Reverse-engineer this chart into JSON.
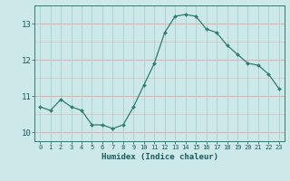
{
  "x": [
    0,
    1,
    2,
    3,
    4,
    5,
    6,
    7,
    8,
    9,
    10,
    11,
    12,
    13,
    14,
    15,
    16,
    17,
    18,
    19,
    20,
    21,
    22,
    23
  ],
  "y": [
    10.7,
    10.6,
    10.9,
    10.7,
    10.6,
    10.2,
    10.2,
    10.1,
    10.2,
    10.7,
    11.3,
    11.9,
    12.75,
    13.2,
    13.25,
    13.2,
    12.85,
    12.75,
    12.4,
    12.15,
    11.9,
    11.85,
    11.6,
    11.2
  ],
  "line_color": "#2e7d6e",
  "marker": "D",
  "marker_size": 2.0,
  "background_color": "#cce8e8",
  "grid_color_h": "#e8a0a0",
  "grid_color_v": "#a8d0d0",
  "xlabel": "Humidex (Indice chaleur)",
  "xlim": [
    -0.5,
    23.5
  ],
  "ylim": [
    9.75,
    13.5
  ],
  "yticks": [
    10,
    11,
    12,
    13
  ],
  "xticks": [
    0,
    1,
    2,
    3,
    4,
    5,
    6,
    7,
    8,
    9,
    10,
    11,
    12,
    13,
    14,
    15,
    16,
    17,
    18,
    19,
    20,
    21,
    22,
    23
  ],
  "tick_color": "#1a5a5a",
  "spine_color": "#2e7d6e",
  "xlabel_fontsize": 6.5,
  "ytick_fontsize": 6.5,
  "xtick_fontsize": 5.0
}
